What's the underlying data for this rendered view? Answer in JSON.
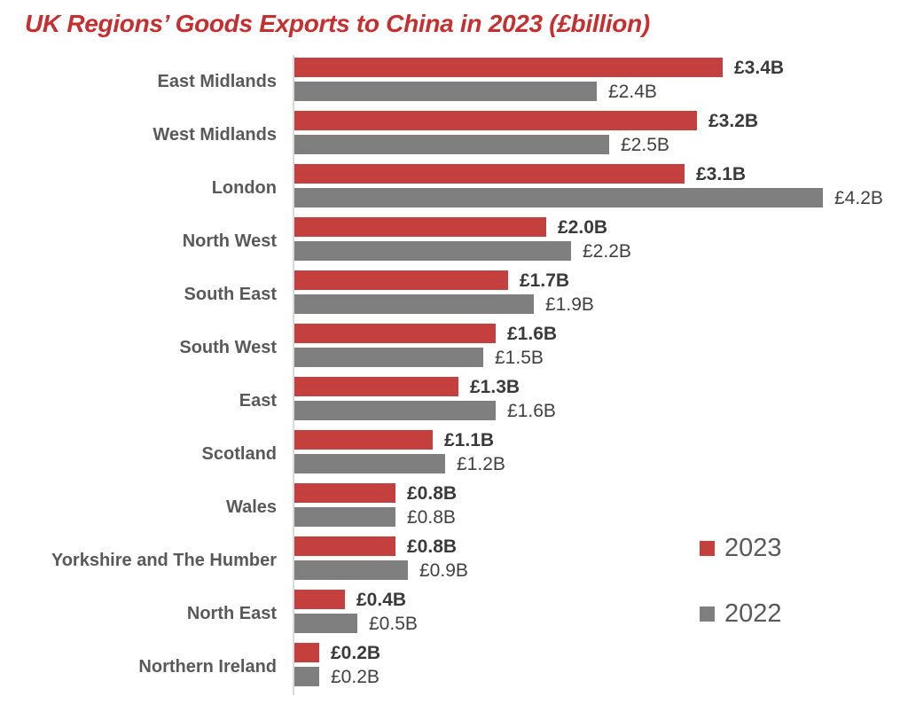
{
  "title": "UK Regions’ Goods Exports to China in 2023 (£billion)",
  "colors": {
    "title": "#C42F2F",
    "bar_2023": "#C4403E",
    "bar_2022": "#7F7F7F",
    "category_label": "#595959",
    "value_label_2023": "#3A3A3A",
    "value_label_2022": "#404040",
    "axis": "#D9D9D9",
    "legend_text": "#595959",
    "background": "#FFFFFF"
  },
  "chart_data": {
    "type": "bar",
    "orientation": "horizontal",
    "title": "UK Regions’ Goods Exports to China in 2023 (£billion)",
    "xlabel": "",
    "ylabel": "",
    "xlim": [
      0,
      4.5
    ],
    "grid": false,
    "legend_position": "right-bottom",
    "value_unit": "£ billion",
    "categories": [
      "East Midlands",
      "West Midlands",
      "London",
      "North West",
      "South East",
      "South West",
      "East",
      "Scotland",
      "Wales",
      "Yorkshire and The Humber",
      "North East",
      "Northern Ireland"
    ],
    "series": [
      {
        "name": "2023",
        "color": "#C4403E",
        "values": [
          3.4,
          3.2,
          3.1,
          2.0,
          1.7,
          1.6,
          1.3,
          1.1,
          0.8,
          0.8,
          0.4,
          0.2
        ],
        "labels": [
          "£3.4B",
          "£3.2B",
          "£3.1B",
          "£2.0B",
          "£1.7B",
          "£1.6B",
          "£1.3B",
          "£1.1B",
          "£0.8B",
          "£0.8B",
          "£0.4B",
          "£0.2B"
        ]
      },
      {
        "name": "2022",
        "color": "#7F7F7F",
        "values": [
          2.4,
          2.5,
          4.2,
          2.2,
          1.9,
          1.5,
          1.6,
          1.2,
          0.8,
          0.9,
          0.5,
          0.2
        ],
        "labels": [
          "£2.4B",
          "£2.5B",
          "£4.2B",
          "£2.2B",
          "£1.9B",
          "£1.5B",
          "£1.6B",
          "£1.2B",
          "£0.8B",
          "£0.9B",
          "£0.5B",
          "£0.2B"
        ]
      }
    ]
  }
}
